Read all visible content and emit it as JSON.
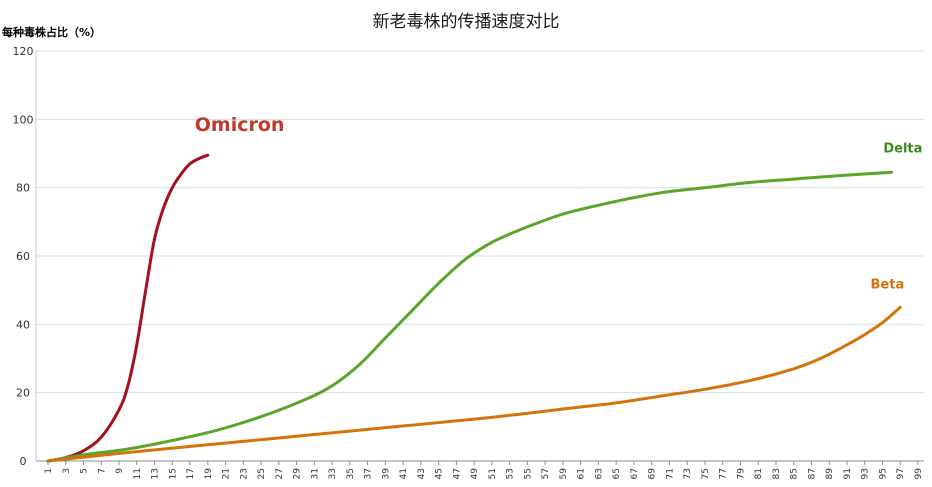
{
  "chart_data": {
    "type": "line",
    "title": "新老毒株的传播速度对比",
    "ylabel": "每种毒株占比（%）",
    "xlabel": "",
    "ylim": [
      0,
      120
    ],
    "yticks": [
      0,
      20,
      40,
      60,
      80,
      100,
      120
    ],
    "xlim": [
      1,
      99
    ],
    "xticks": [
      1,
      3,
      5,
      7,
      9,
      11,
      13,
      15,
      17,
      19,
      21,
      23,
      25,
      27,
      29,
      31,
      33,
      35,
      37,
      39,
      41,
      43,
      45,
      47,
      49,
      51,
      53,
      55,
      57,
      59,
      61,
      63,
      65,
      67,
      69,
      71,
      73,
      75,
      77,
      79,
      81,
      83,
      85,
      87,
      89,
      91,
      93,
      95,
      97,
      99
    ],
    "grid": true,
    "legend": "inline-labels",
    "series": [
      {
        "name": "Omicron",
        "color": "#a50f1e",
        "label_color": "#c0392b",
        "x": [
          1,
          3,
          5,
          7,
          9,
          10,
          11,
          12,
          13,
          14,
          15,
          16,
          17,
          18,
          19
        ],
        "y": [
          0,
          1,
          3,
          7,
          15,
          22,
          34,
          50,
          65,
          74,
          80,
          84,
          87,
          88.5,
          89.5
        ]
      },
      {
        "name": "Delta",
        "color": "#5aa52a",
        "label_color": "#3c8c1c",
        "x": [
          1,
          5,
          10,
          15,
          20,
          25,
          30,
          33,
          36,
          39,
          42,
          45,
          48,
          51,
          54,
          57,
          60,
          65,
          70,
          75,
          80,
          85,
          90,
          96
        ],
        "y": [
          0,
          1.8,
          3.5,
          6,
          9,
          13,
          18,
          22,
          28,
          36,
          44,
          52,
          59,
          64,
          67.5,
          70.5,
          73,
          76,
          78.5,
          80,
          81.5,
          82.5,
          83.5,
          84.5
        ]
      },
      {
        "name": "Beta",
        "color": "#d4730a",
        "label_color": "#d4730a",
        "x": [
          1,
          10,
          20,
          30,
          40,
          50,
          60,
          65,
          70,
          75,
          80,
          85,
          88,
          91,
          93,
          95,
          97
        ],
        "y": [
          0,
          2.5,
          5,
          7.5,
          10,
          12.5,
          15.5,
          17,
          19,
          21,
          23.5,
          27,
          30,
          34,
          37,
          40.5,
          45
        ]
      }
    ]
  }
}
